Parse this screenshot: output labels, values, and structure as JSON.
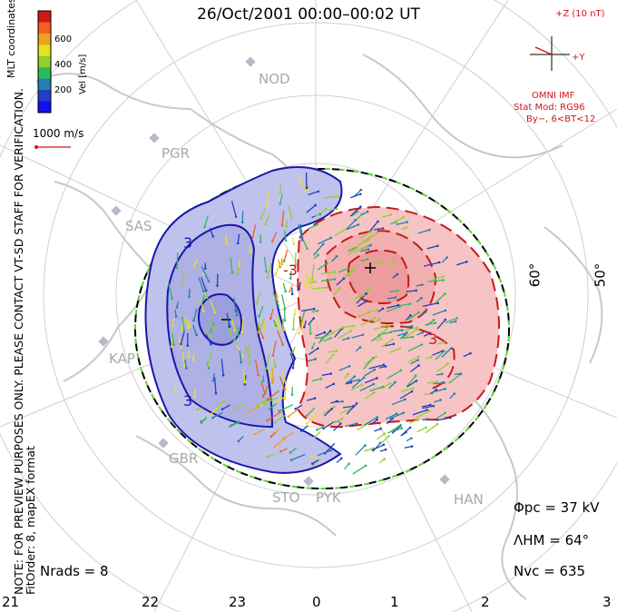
{
  "header": {
    "title": "26/Oct/2001 00:00–00:02 UT"
  },
  "notes": {
    "line1": "NOTE: FOR PREVIEW PURPOSES ONLY. PLEASE CONTACT VT-SD STAFF FOR VERIFICATION.",
    "line2": "FitOrder: 8, mapEX format"
  },
  "coords_label": "MLT coordinates",
  "velocity_legend": {
    "label": "Vel [m/s]",
    "ticks": [
      "600",
      "400",
      "200"
    ],
    "colors": [
      "#d01818",
      "#f06020",
      "#f0a020",
      "#e8e020",
      "#90d030",
      "#30b860",
      "#2080b0",
      "#2040c0",
      "#1010f0"
    ],
    "scale_text": "1000 m/s"
  },
  "imf": {
    "label_z": "+Z (10 nT)",
    "label_y": "+Y",
    "omni": "OMNI IMF",
    "model": "Stat Mod: RG96",
    "condition": "By−, 6<BT<12"
  },
  "stations": [
    "NOD",
    "PGR",
    "SAS",
    "KAP",
    "GBR",
    "STO",
    "PYK",
    "HAN"
  ],
  "contour_labels": {
    "neg": "-3",
    "pos": "3",
    "neg_small": "3"
  },
  "latitudes": [
    "60°",
    "50°"
  ],
  "mlt_labels": [
    "21",
    "22",
    "23",
    "0",
    "1",
    "2",
    "3"
  ],
  "stats": {
    "phi_pc": "Φpc = 37 kV",
    "lambda_hm": "ΛHM = 64°",
    "n_vc": "Nvc = 635",
    "n_rads": "Nrads = 8"
  },
  "colors": {
    "negative_cell": "#b7b9e8",
    "positive_cell": "#f4b4b4",
    "contour_blue": "#1818a8",
    "contour_red": "#c81818",
    "boundary": "#000000"
  }
}
